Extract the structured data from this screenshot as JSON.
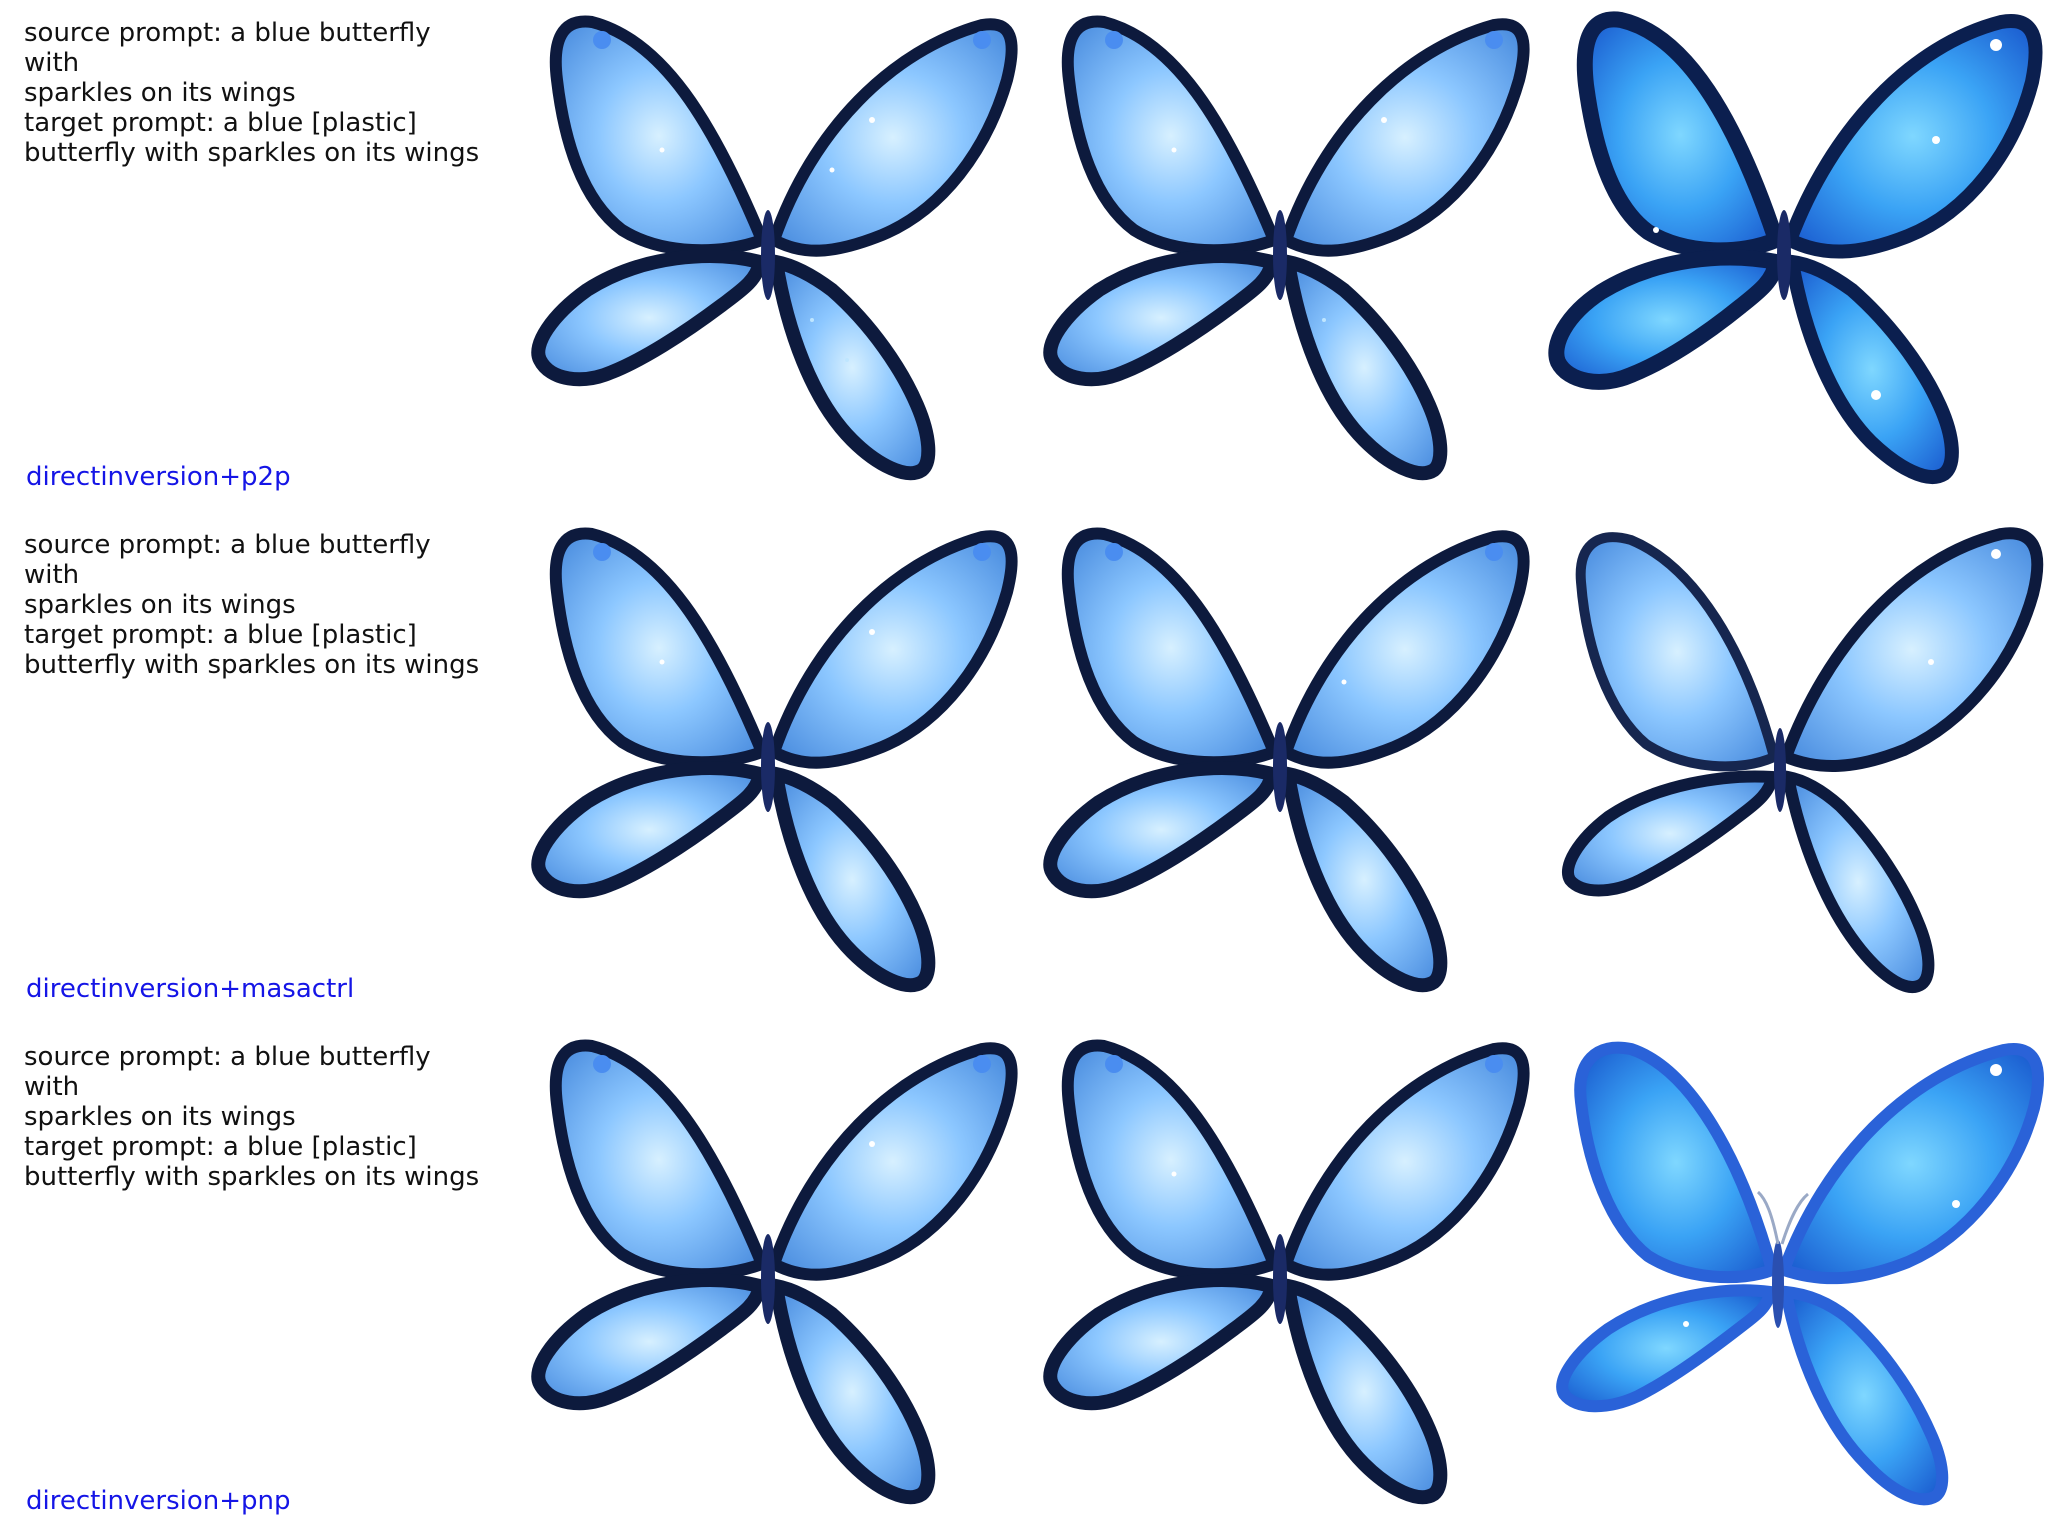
{
  "rows": [
    {
      "source_line_1": "source prompt: a blue butterfly with",
      "source_line_2": "sparkles on its wings",
      "target_line_1": "target prompt: a blue [plastic]",
      "target_line_2": "butterfly with sparkles on its wings",
      "method": "directinversion+p2p",
      "images": [
        {
          "subject": "blue-butterfly-sparkles"
        },
        {
          "subject": "blue-butterfly-sparkles"
        },
        {
          "subject": "blue-plastic-butterfly"
        }
      ]
    },
    {
      "source_line_1": "source prompt: a blue butterfly with",
      "source_line_2": "sparkles on its wings",
      "target_line_1": "target prompt: a blue [plastic]",
      "target_line_2": "butterfly with sparkles on its wings",
      "method": "directinversion+masactrl",
      "images": [
        {
          "subject": "blue-butterfly-sparkles"
        },
        {
          "subject": "blue-butterfly-sparkles"
        },
        {
          "subject": "blue-plastic-butterfly"
        }
      ]
    },
    {
      "source_line_1": "source prompt: a blue butterfly with",
      "source_line_2": "sparkles on its wings",
      "target_line_1": "target prompt: a blue [plastic]",
      "target_line_2": "butterfly with sparkles on its wings",
      "method": "directinversion+pnp",
      "images": [
        {
          "subject": "blue-butterfly-sparkles"
        },
        {
          "subject": "blue-butterfly-sparkles"
        },
        {
          "subject": "blue-plastic-butterfly"
        }
      ]
    }
  ],
  "colors": {
    "method_label": "#1515e6",
    "caption_text": "#111111",
    "wing_light": "#9fd0ff",
    "wing_mid": "#5aa8f5",
    "wing_edge": "#0d1a3d",
    "plastic_blue": "#2f8ff0"
  }
}
